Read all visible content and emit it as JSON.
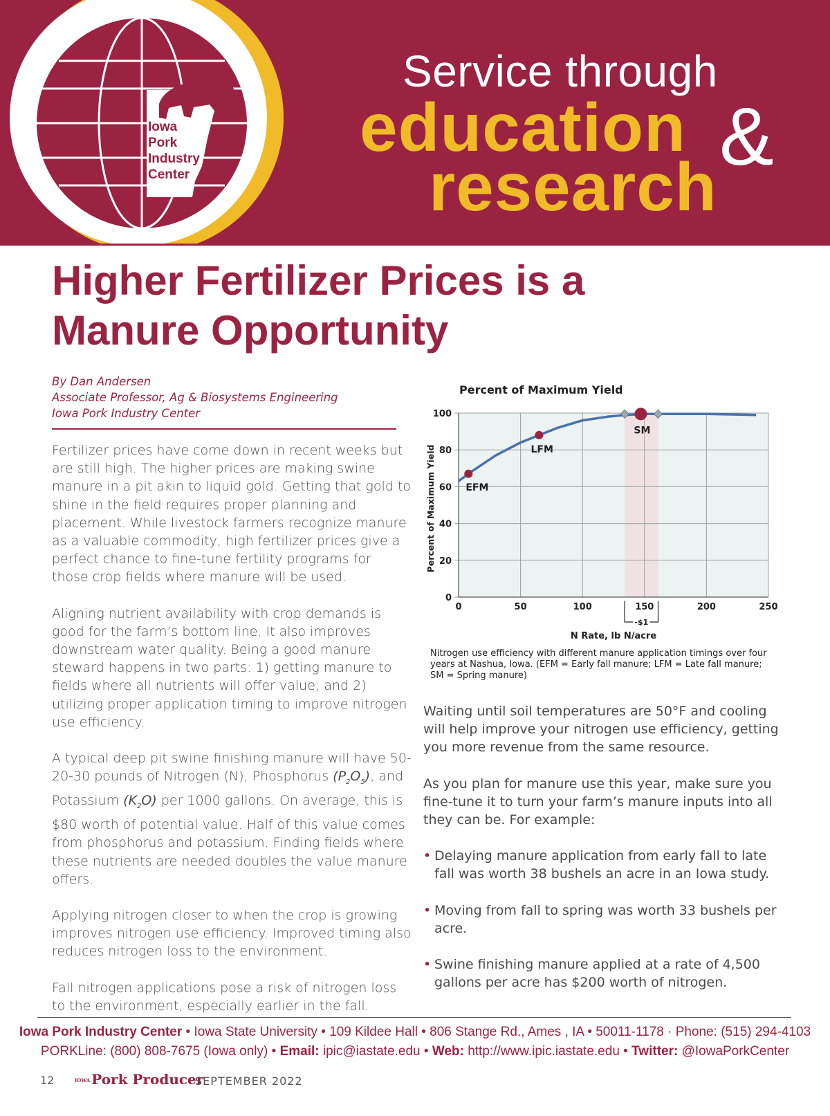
{
  "banner": {
    "logo_text": [
      "Iowa",
      "Pork",
      "Industry",
      "Center"
    ],
    "line1": "Service through",
    "line2": "education",
    "amp": "&",
    "line3": "research",
    "colors": {
      "maroon": "#9b2342",
      "gold": "#f0ba28"
    }
  },
  "article": {
    "title_line1": "Higher Fertilizer Prices is a",
    "title_line2": "Manure Opportunity",
    "byline": [
      "By Dan Andersen",
      "Associate Professor, Ag & Biosystems Engineering",
      "Iowa Pork Industry Center"
    ],
    "left_paragraphs": [
      "Fertilizer prices have come down in recent weeks but are still high. The higher prices are making swine manure in a pit akin to liquid gold. Getting that gold to shine in the field requires proper planning and placement. While livestock farmers recognize manure as a valuable commodity, high fertilizer prices give a perfect chance to fine-tune fertility programs for those crop fields where manure will be used.",
      "Aligning nutrient availability with crop demands is good for the farm’s bottom line. It also improves downstream water quality. Being a good manure steward happens in two parts: 1) getting manure to fields where all nutrients will offer value; and 2) utilizing proper application timing to improve nitrogen use efficiency."
    ],
    "p3": {
      "a": "A typical deep pit swine finishing manure will have 50-20-30 pounds of Nitrogen (N), Phosphorus ",
      "p_formula": "(P",
      "p_sub1": "2",
      "p_mid": "O",
      "p_sub2": "5",
      "p_end": ")",
      "b": ", and Potassium ",
      "k_formula": "(K",
      "k_sub": "2",
      "k_end": "O)",
      "c": " per 1000 gallons. On average, this is $80 worth of potential value. Half of this value comes from phosphorus and potassium. Finding fields where these nutrients are needed doubles the value manure offers."
    },
    "left_paragraphs_2": [
      "Applying nitrogen closer to when the crop is growing improves nitrogen use efficiency. Improved timing also reduces nitrogen loss to the environment.",
      "Fall nitrogen applications pose a risk of nitrogen loss to the environment, especially earlier in the fall."
    ],
    "right_paragraphs": [
      "Waiting until soil temperatures are 50°F and cooling will help improve your nitrogen use efficiency, getting you more revenue from the same resource.",
      "As you plan for manure use this year, make sure you fine-tune it to turn your farm’s manure inputs into all they can be. For example:"
    ],
    "bullets": [
      "Delaying manure application from early fall to late fall was worth 38 bushels an acre in an Iowa study.",
      "Moving from fall to spring was worth 33 bushels per acre.",
      "Swine finishing manure applied at a rate of 4,500 gallons per acre has $200 worth of nitrogen."
    ],
    "bullet_symbol": "•",
    "caption": "Nitrogen use efficiency with different manure application timings over four years at Nashua, Iowa. (EFM = Early fall manure; LFM = Late fall manure; SM = Spring manure)"
  },
  "chart_data": {
    "type": "line",
    "title": "Percent of Maximum Yield",
    "xlabel": "N Rate, lb N/acre",
    "ylabel": "Percent of Maximum Yield",
    "xlim": [
      0,
      250
    ],
    "ylim": [
      0,
      100
    ],
    "xticks": [
      0,
      50,
      100,
      150,
      200,
      250
    ],
    "yticks": [
      0,
      20,
      40,
      60,
      80,
      100
    ],
    "grid": true,
    "series": [
      {
        "x": [
          0,
          10,
          30,
          50,
          65,
          80,
          100,
          120,
          135,
          150,
          165,
          200,
          240
        ],
        "y": [
          63,
          68,
          77,
          84,
          88,
          92,
          96,
          98,
          99,
          99.5,
          99.5,
          99.5,
          99
        ]
      }
    ],
    "points": [
      {
        "label": "EFM",
        "x": 8,
        "y": 67
      },
      {
        "label": "LFM",
        "x": 65,
        "y": 88
      },
      {
        "label": "SM",
        "x": 147,
        "y": 99.5
      }
    ],
    "optimum_band": {
      "from": 134,
      "to": 161,
      "label": "-$1"
    },
    "band_markers": [
      134,
      161
    ],
    "colors": {
      "line": "#4a72a8",
      "point": "#9b2342",
      "band": "#f0e2e4",
      "bg": "#edf2f2"
    }
  },
  "footer": {
    "org": "Iowa Pork Industry Center",
    "address": " • Iowa State University • 109 Kildee Hall • 806 Stange Rd., Ames , IA • 50011-1178 · Phone: (515) 294-4103",
    "porkline": "PORKLine: (800) 808-7675 (Iowa only) • ",
    "email_label": "Email:",
    "email": " ipic@iastate.edu • ",
    "web_label": "Web:",
    "web": " http://www.ipic.iastate.edu • ",
    "twitter_label": "Twitter:",
    "twitter": " @IowaPorkCenter"
  },
  "page_footer": {
    "page_number": "12",
    "magazine_small": "IOWA",
    "magazine": "Pork Producer",
    "date": "SEPTEMBER 2022"
  }
}
